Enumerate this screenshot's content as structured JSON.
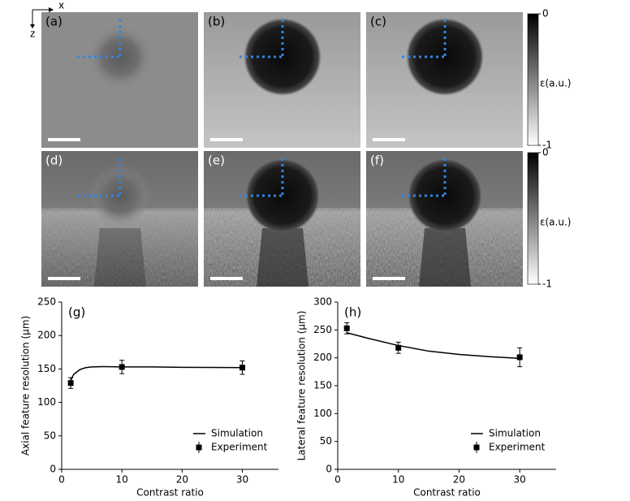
{
  "image_panels": {
    "labels": [
      "(a)",
      "(b)",
      "(c)",
      "(d)",
      "(e)",
      "(f)"
    ],
    "colorbars": [
      {
        "label": "ε(a.u.)",
        "ticks": [
          0,
          -1
        ]
      },
      {
        "label": "ε(a.u.)",
        "ticks": [
          0,
          -1
        ]
      }
    ],
    "axis_labels": [
      "x",
      "z"
    ]
  },
  "chart_data": [
    {
      "type": "line",
      "panel_label": "(g)",
      "x_label": "Contrast ratio",
      "y_label": "Axial feature resolution (μm)",
      "xlim": [
        0,
        36
      ],
      "xticks": [
        0,
        10,
        20,
        30
      ],
      "ylim": [
        0,
        250
      ],
      "yticks": [
        0,
        50,
        100,
        150,
        200,
        250
      ],
      "legend": "lower right",
      "series": [
        {
          "name": "Simulation",
          "color": "#000000",
          "style": "line",
          "x": [
            1.5,
            2,
            3,
            4,
            5,
            7,
            10,
            15,
            20,
            25,
            30
          ],
          "values": [
            133,
            142,
            149,
            152,
            153,
            153.5,
            153,
            153,
            152.5,
            152.3,
            152
          ]
        },
        {
          "name": "Experiment",
          "color": "#000000",
          "style": "marker",
          "x": [
            1.5,
            10,
            30
          ],
          "values": [
            129,
            153,
            152
          ],
          "errors": [
            8,
            10,
            10
          ]
        }
      ]
    },
    {
      "type": "line",
      "panel_label": "(h)",
      "x_label": "Contrast ratio",
      "y_label": "Lateral feature resolution (μm)",
      "xlim": [
        0,
        36
      ],
      "xticks": [
        0,
        10,
        20,
        30
      ],
      "ylim": [
        0,
        300
      ],
      "yticks": [
        0,
        50,
        100,
        150,
        200,
        250,
        300
      ],
      "legend": "lower right",
      "series": [
        {
          "name": "Simulation",
          "color": "#000000",
          "style": "line",
          "x": [
            1.5,
            5,
            10,
            15,
            20,
            25,
            30
          ],
          "values": [
            245,
            235,
            222,
            212,
            206,
            202,
            199
          ]
        },
        {
          "name": "Experiment",
          "color": "#000000",
          "style": "marker",
          "x": [
            1.5,
            10,
            30
          ],
          "values": [
            253,
            218,
            201
          ],
          "errors": [
            10,
            10,
            17
          ]
        }
      ]
    }
  ]
}
